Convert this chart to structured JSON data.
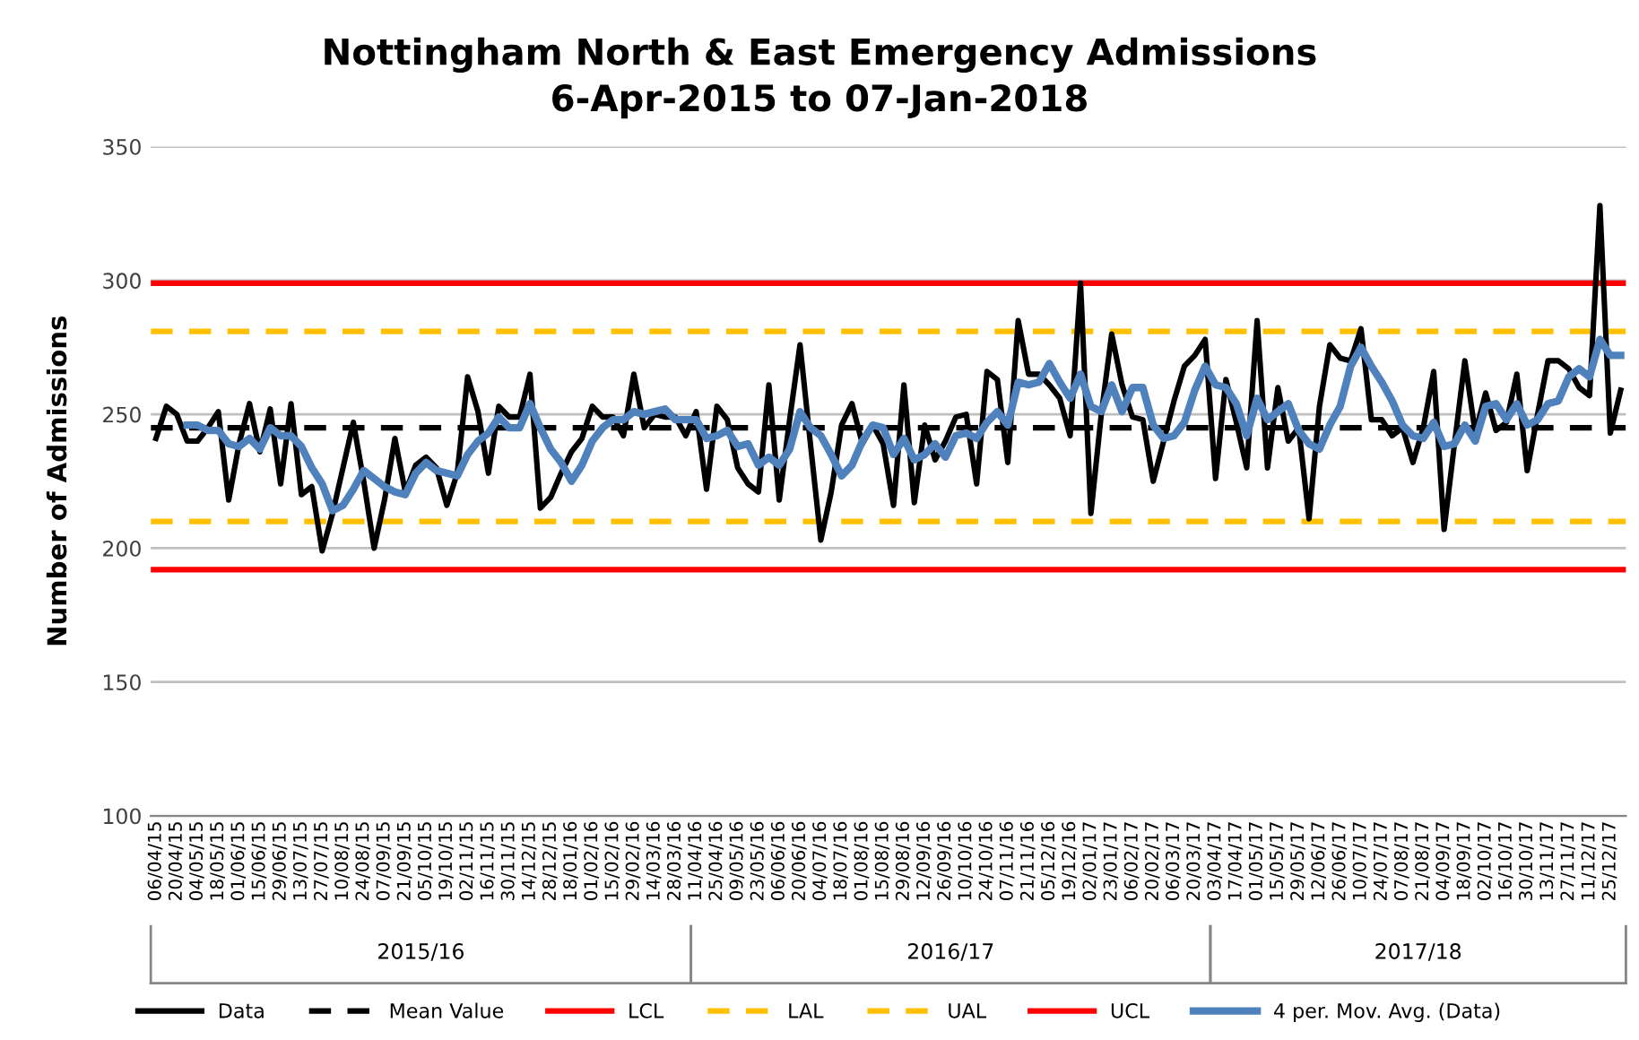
{
  "chart_data": {
    "type": "line",
    "title": "Nottingham North & East Emergency Admissions\n6-Apr-2015 to 07-Jan-2018",
    "ylabel": "Number of Admissions",
    "categories": [
      "06/04/15",
      null,
      "20/04/15",
      null,
      "04/05/15",
      null,
      "18/05/15",
      null,
      "01/06/15",
      null,
      "15/06/15",
      null,
      "29/06/15",
      null,
      "13/07/15",
      null,
      "27/07/15",
      null,
      "10/08/15",
      null,
      "24/08/15",
      null,
      "07/09/15",
      null,
      "21/09/15",
      null,
      "05/10/15",
      null,
      "19/10/15",
      null,
      "02/11/15",
      null,
      "16/11/15",
      null,
      "30/11/15",
      null,
      "14/12/15",
      null,
      "28/12/15",
      null,
      "18/01/16",
      null,
      "01/02/16",
      null,
      "15/02/16",
      null,
      "29/02/16",
      null,
      "14/03/16",
      null,
      "28/03/16",
      null,
      "11/04/16",
      null,
      "25/04/16",
      null,
      "09/05/16",
      null,
      "23/05/16",
      null,
      "06/06/16",
      null,
      "20/06/16",
      null,
      "04/07/16",
      null,
      "18/07/16",
      null,
      "01/08/16",
      null,
      "15/08/16",
      null,
      "29/08/16",
      null,
      "12/09/16",
      null,
      "26/09/16",
      null,
      "10/10/16",
      null,
      "24/10/16",
      null,
      "07/11/16",
      null,
      "21/11/16",
      null,
      "05/12/16",
      null,
      "19/12/16",
      null,
      "02/01/17",
      null,
      "23/01/17",
      null,
      "06/02/17",
      null,
      "20/02/17",
      null,
      "06/03/17",
      null,
      "20/03/17",
      null,
      "03/04/17",
      null,
      "17/04/17",
      null,
      "01/05/17",
      null,
      "15/05/17",
      null,
      "29/05/17",
      null,
      "12/06/17",
      null,
      "26/06/17",
      null,
      "10/07/17",
      null,
      "24/07/17",
      null,
      "07/08/17",
      null,
      "21/08/17",
      null,
      "04/09/17",
      null,
      "18/09/17",
      null,
      "02/10/17",
      null,
      "16/10/17",
      null,
      "30/10/17",
      null,
      "13/11/17",
      null,
      "27/11/17",
      null,
      "11/12/17",
      null,
      "25/12/17",
      null
    ],
    "series": [
      {
        "name": "Data",
        "color": "#000000",
        "line_style": "solid",
        "values": [
          241,
          253,
          250,
          240,
          240,
          245,
          251,
          218,
          239,
          254,
          236,
          252,
          224,
          254,
          220,
          223,
          199,
          213,
          230,
          247,
          225,
          200,
          218,
          241,
          221,
          231,
          234,
          230,
          216,
          228,
          264,
          251,
          228,
          253,
          249,
          249,
          265,
          215,
          219,
          228,
          236,
          241,
          253,
          249,
          249,
          242,
          265,
          245,
          250,
          249,
          249,
          242,
          251,
          222,
          253,
          248,
          230,
          224,
          221,
          261,
          218,
          248,
          276,
          239,
          203,
          221,
          246,
          254,
          239,
          246,
          239,
          216,
          261,
          217,
          246,
          233,
          240,
          249,
          250,
          224,
          266,
          263,
          232,
          285,
          265,
          265,
          261,
          256,
          242,
          299,
          213,
          250,
          280,
          261,
          249,
          248,
          225,
          240,
          255,
          268,
          272,
          278,
          226,
          263,
          247,
          230,
          285,
          230,
          260,
          240,
          245,
          211,
          253,
          276,
          271,
          270,
          282,
          248,
          248,
          242,
          245,
          232,
          245,
          266,
          207,
          239,
          270,
          243,
          258,
          244,
          247,
          265,
          229,
          250,
          270,
          270,
          267,
          260,
          257,
          328,
          243,
          259
        ]
      },
      {
        "name": "4 per. Mov. Avg. (Data)",
        "color": "#4f81bd",
        "line_style": "solid",
        "values": [
          null,
          null,
          null,
          246,
          246,
          244,
          244,
          239,
          238,
          241,
          237,
          245,
          242,
          242,
          238,
          230,
          224,
          214,
          216,
          222,
          229,
          226,
          223,
          221,
          220,
          228,
          232,
          229,
          228,
          227,
          235,
          240,
          243,
          249,
          245,
          245,
          254,
          245,
          237,
          232,
          225,
          231,
          240,
          245,
          248,
          248,
          251,
          250,
          251,
          252,
          248,
          248,
          248,
          241,
          242,
          244,
          238,
          239,
          231,
          234,
          231,
          237,
          251,
          245,
          242,
          235,
          227,
          231,
          240,
          246,
          245,
          235,
          241,
          233,
          235,
          239,
          234,
          242,
          243,
          241,
          247,
          251,
          246,
          262,
          261,
          262,
          269,
          262,
          256,
          265,
          253,
          251,
          261,
          251,
          260,
          260,
          246,
          241,
          242,
          247,
          259,
          268,
          261,
          260,
          254,
          242,
          256,
          248,
          251,
          254,
          244,
          239,
          237,
          246,
          253,
          268,
          275,
          268,
          262,
          255,
          246,
          242,
          241,
          247,
          238,
          239,
          246,
          240,
          253,
          254,
          248,
          254,
          246,
          248,
          254,
          255,
          264,
          267,
          264,
          278,
          272,
          272
        ]
      }
    ],
    "ref_lines": [
      {
        "axis": "y",
        "value": 245,
        "label": "Mean Value",
        "color": "#000000",
        "line_style": "dashed"
      },
      {
        "axis": "y",
        "value": 192,
        "label": "LCL",
        "color": "#ff0000",
        "line_style": "solid"
      },
      {
        "axis": "y",
        "value": 210,
        "label": "LAL",
        "color": "#ffc000",
        "line_style": "dashed"
      },
      {
        "axis": "y",
        "value": 281,
        "label": "UAL",
        "color": "#ffc000",
        "line_style": "dashed"
      },
      {
        "axis": "y",
        "value": 299,
        "label": "UCL",
        "color": "#ff0000",
        "line_style": "solid"
      }
    ],
    "annotations": [
      "2015/16",
      "2016/17",
      "2017/18"
    ],
    "ylim": [
      100,
      350
    ],
    "yticks": [
      100,
      150,
      200,
      250,
      300,
      350
    ],
    "grid": "y",
    "legend": "bottom",
    "marker": "none"
  }
}
